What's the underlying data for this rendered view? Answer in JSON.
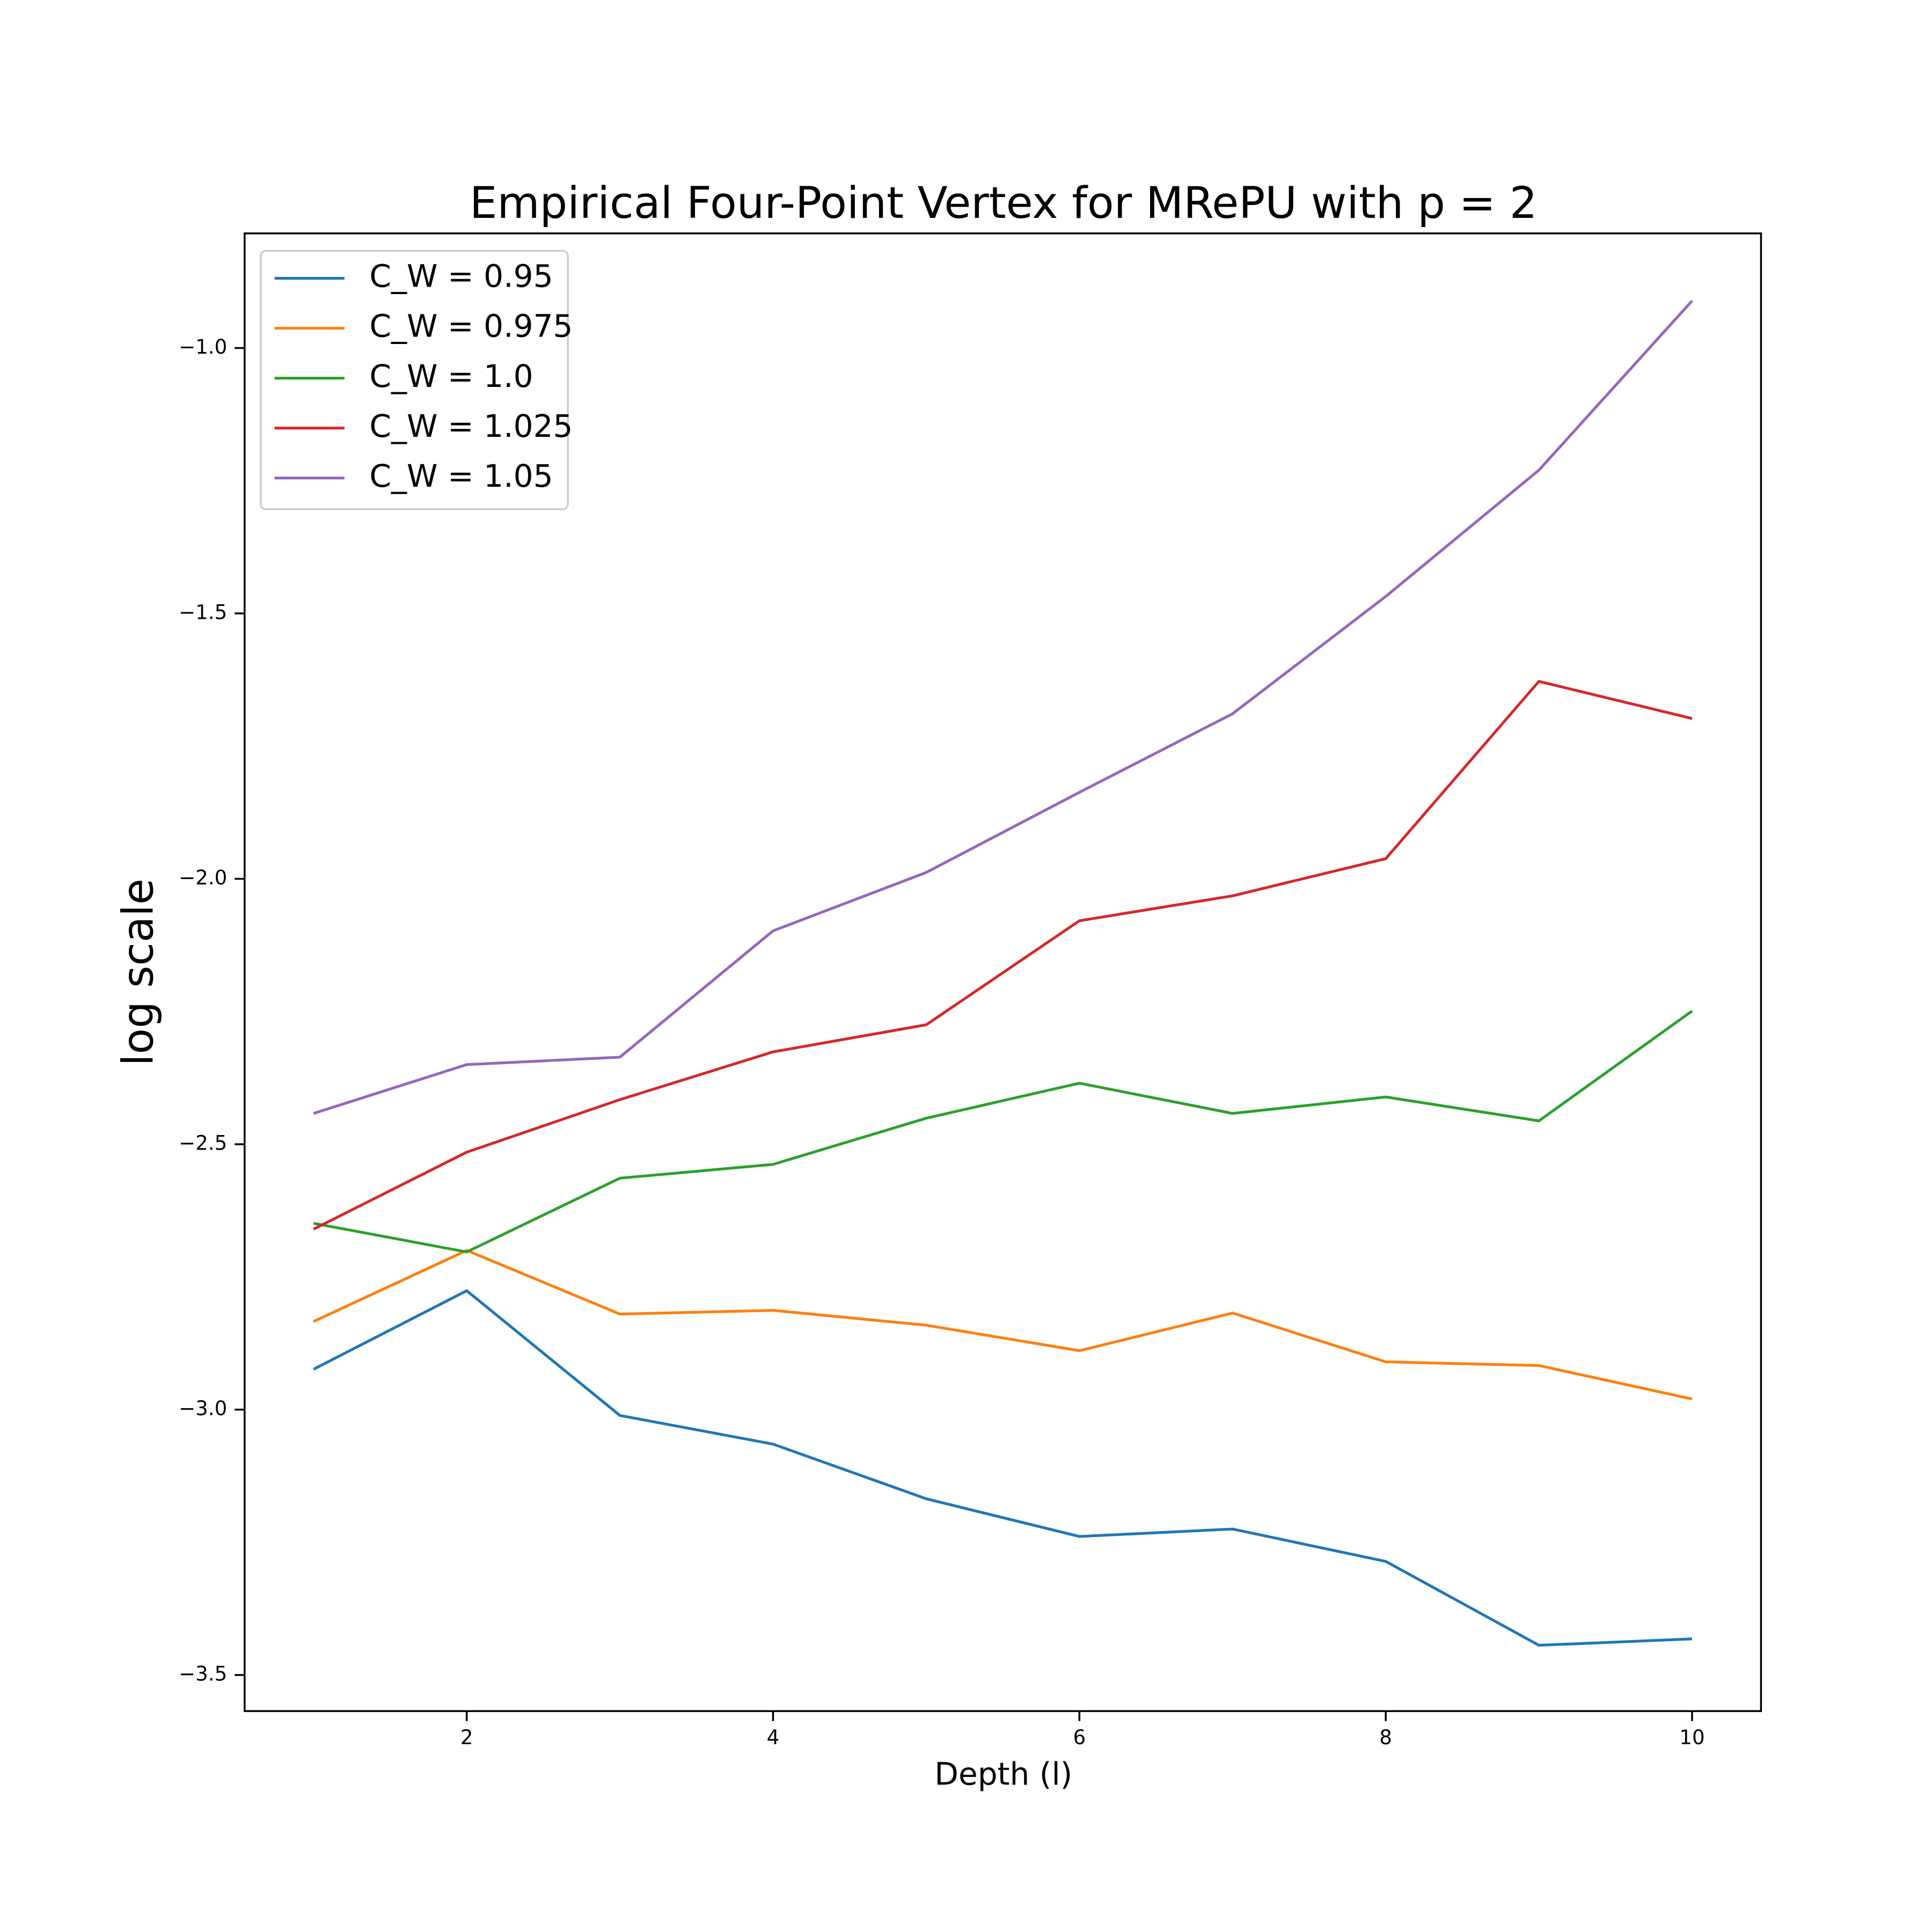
{
  "chart_data": {
    "type": "line",
    "title": "Empirical Four-Point Vertex for MRePU with p = 2",
    "x_label": "Depth (l)",
    "y_label": "log scale",
    "x": [
      1,
      2,
      3,
      4,
      5,
      6,
      7,
      8,
      9,
      10
    ],
    "series": [
      {
        "name": "C_W = 0.95",
        "color": "#1f77b4",
        "values": [
          -2.924,
          -2.776,
          -3.011,
          -3.065,
          -3.168,
          -3.239,
          -3.225,
          -3.286,
          -3.444,
          -3.432
        ]
      },
      {
        "name": "C_W = 0.975",
        "color": "#ff7f0e",
        "values": [
          -2.834,
          -2.7,
          -2.82,
          -2.813,
          -2.841,
          -2.889,
          -2.818,
          -2.91,
          -2.917,
          -2.98
        ]
      },
      {
        "name": "C_W = 1.0",
        "color": "#2ca02c",
        "values": [
          -2.649,
          -2.703,
          -2.564,
          -2.538,
          -2.451,
          -2.385,
          -2.442,
          -2.411,
          -2.456,
          -2.249
        ]
      },
      {
        "name": "C_W = 1.025",
        "color": "#d62728",
        "values": [
          -2.66,
          -2.515,
          -2.416,
          -2.326,
          -2.275,
          -2.079,
          -2.032,
          -1.962,
          -1.628,
          -1.698
        ]
      },
      {
        "name": "C_W = 1.05",
        "color": "#9467bd",
        "values": [
          -2.442,
          -2.35,
          -2.336,
          -2.098,
          -1.988,
          -1.837,
          -1.689,
          -1.468,
          -1.23,
          -0.911
        ]
      }
    ],
    "xlim": [
      0.55,
      10.45
    ],
    "ylim": [
      -3.568,
      -0.784
    ],
    "xticks": [
      2,
      4,
      6,
      8,
      10
    ],
    "yticks": [
      {
        "value": -3.5,
        "label": "−3.5"
      },
      {
        "value": -3.0,
        "label": "−3.0"
      },
      {
        "value": -2.5,
        "label": "−2.5"
      },
      {
        "value": -2.0,
        "label": "−2.0"
      },
      {
        "value": -1.5,
        "label": "−1.5"
      },
      {
        "value": -1.0,
        "label": "−1.0"
      }
    ],
    "legend": "upper left"
  }
}
